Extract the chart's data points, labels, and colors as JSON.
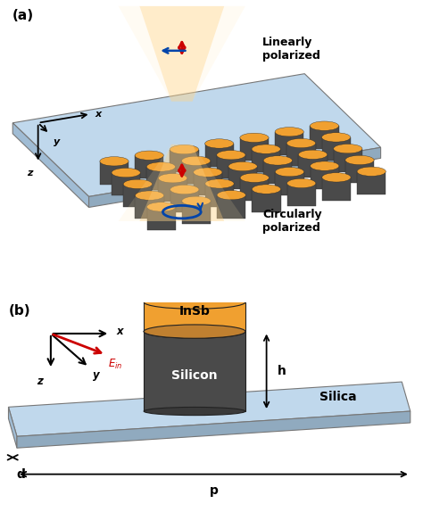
{
  "fig_width": 4.74,
  "fig_height": 5.74,
  "dpi": 100,
  "background_color": "#ffffff",
  "panel_a_label": "(a)",
  "panel_b_label": "(b)",
  "linearly_polarized_text": "Linearly\npolarized",
  "circularly_polarized_text": "Circularly\npolarized",
  "insb_label": "InSb",
  "silicon_label": "Silicon",
  "silica_label": "Silica",
  "h_label": "h",
  "d_label": "d",
  "p_label": "p",
  "ein_label": "$E_{in}$",
  "x_label": "x",
  "y_label": "y",
  "z_label": "z",
  "cylinder_top_color": "#F0A030",
  "cylinder_side_color": "#4A4A4A",
  "plate_top_color": "#C0D8EC",
  "plate_left_color": "#A0BCD4",
  "plate_front_color": "#90AABF",
  "insb_top_color": "#F0A030",
  "silicon_body_color": "#4A4A4A",
  "silica_top_color": "#C0D8EC",
  "silica_left_color": "#A0BCD4",
  "silica_front_color": "#90AABF",
  "beam_inner_color": "#FFD080",
  "beam_outer_color": "#FFE8B0",
  "red_arrow_color": "#CC0000",
  "blue_arrow_color": "#0044AA",
  "blue_ellipse_color": "#0044AA"
}
